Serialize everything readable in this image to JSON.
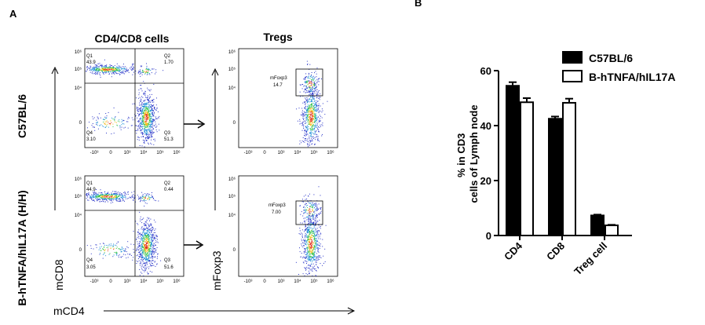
{
  "panel_a": {
    "letter": "A",
    "col_titles": [
      "CD4/CD8 cells",
      "Tregs"
    ],
    "row_labels": [
      "C57BL/6",
      "B-hTNFA/hIL17A (H/H)"
    ],
    "x_axis_label": "mCD4",
    "y_axis_labels": {
      "left": "mCD8",
      "right": "mFoxp3"
    },
    "tick_labels": {
      "y": [
        "10⁶",
        "10⁵",
        "10⁴",
        "0"
      ],
      "x": [
        "-10³",
        "0",
        "10³",
        "10⁴",
        "10⁵",
        "10⁶"
      ]
    },
    "plots": [
      {
        "row": 0,
        "type": "quadrant",
        "quadrants": [
          {
            "name": "Q1",
            "value": "43.9"
          },
          {
            "name": "Q2",
            "value": "1.70"
          },
          {
            "name": "Q3",
            "value": "51.3"
          },
          {
            "name": "Q4",
            "value": "3.10"
          }
        ]
      },
      {
        "row": 1,
        "type": "quadrant",
        "quadrants": [
          {
            "name": "Q1",
            "value": "44.9"
          },
          {
            "name": "Q2",
            "value": "0.44"
          },
          {
            "name": "Q3",
            "value": "51.6"
          },
          {
            "name": "Q4",
            "value": "3.05"
          }
        ]
      },
      {
        "row": 0,
        "type": "gate",
        "gate_name": "mFoxp3",
        "value": "14.7"
      },
      {
        "row": 1,
        "type": "gate",
        "gate_name": "mFoxp3",
        "value": "7.00"
      }
    ]
  },
  "chart_data": {
    "letter": "B",
    "type": "bar",
    "categories": [
      "CD4",
      "CD8",
      "Treg cell"
    ],
    "ylabel": "% in CD3 cells of Lymph node",
    "ylim": [
      0,
      60
    ],
    "yticks": [
      0,
      20,
      40,
      60
    ],
    "legend_position": "top-right",
    "series": [
      {
        "name": "C57BL/6",
        "values": [
          54.5,
          42.5,
          7.3
        ],
        "errors": [
          1.3,
          0.8,
          0.3
        ],
        "fill": "#000000"
      },
      {
        "name": "B-hTNFA/hIL17A",
        "values": [
          48.5,
          48.3,
          3.7
        ],
        "errors": [
          1.5,
          1.5,
          0.2
        ],
        "fill": "#ffffff"
      }
    ]
  }
}
